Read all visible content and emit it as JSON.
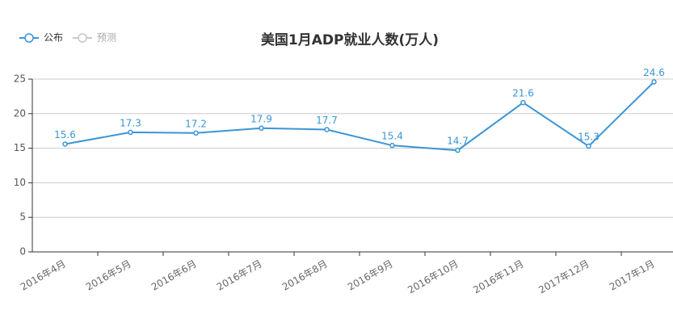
{
  "chart_data": {
    "type": "line",
    "title": "美国1月ADP就业人数(万人)",
    "categories": [
      "2016年4月",
      "2016年5月",
      "2016年6月",
      "2016年7月",
      "2016年8月",
      "2016年9月",
      "2016年10月",
      "2016年11月",
      "2017年12月",
      "2017年1月"
    ],
    "series": [
      {
        "name": "公布",
        "color": "#3a95d5",
        "values": [
          15.6,
          17.3,
          17.2,
          17.9,
          17.7,
          15.4,
          14.7,
          21.6,
          15.3,
          24.6
        ]
      },
      {
        "name": "预测",
        "color": "#c8c8c8",
        "values": [
          null,
          null,
          null,
          null,
          null,
          null,
          null,
          null,
          null,
          null
        ]
      }
    ],
    "ylim": [
      0,
      25
    ],
    "yticks": [
      0,
      5,
      10,
      15,
      20,
      25
    ],
    "grid": true,
    "legend": "top-left",
    "data_labels": true
  }
}
